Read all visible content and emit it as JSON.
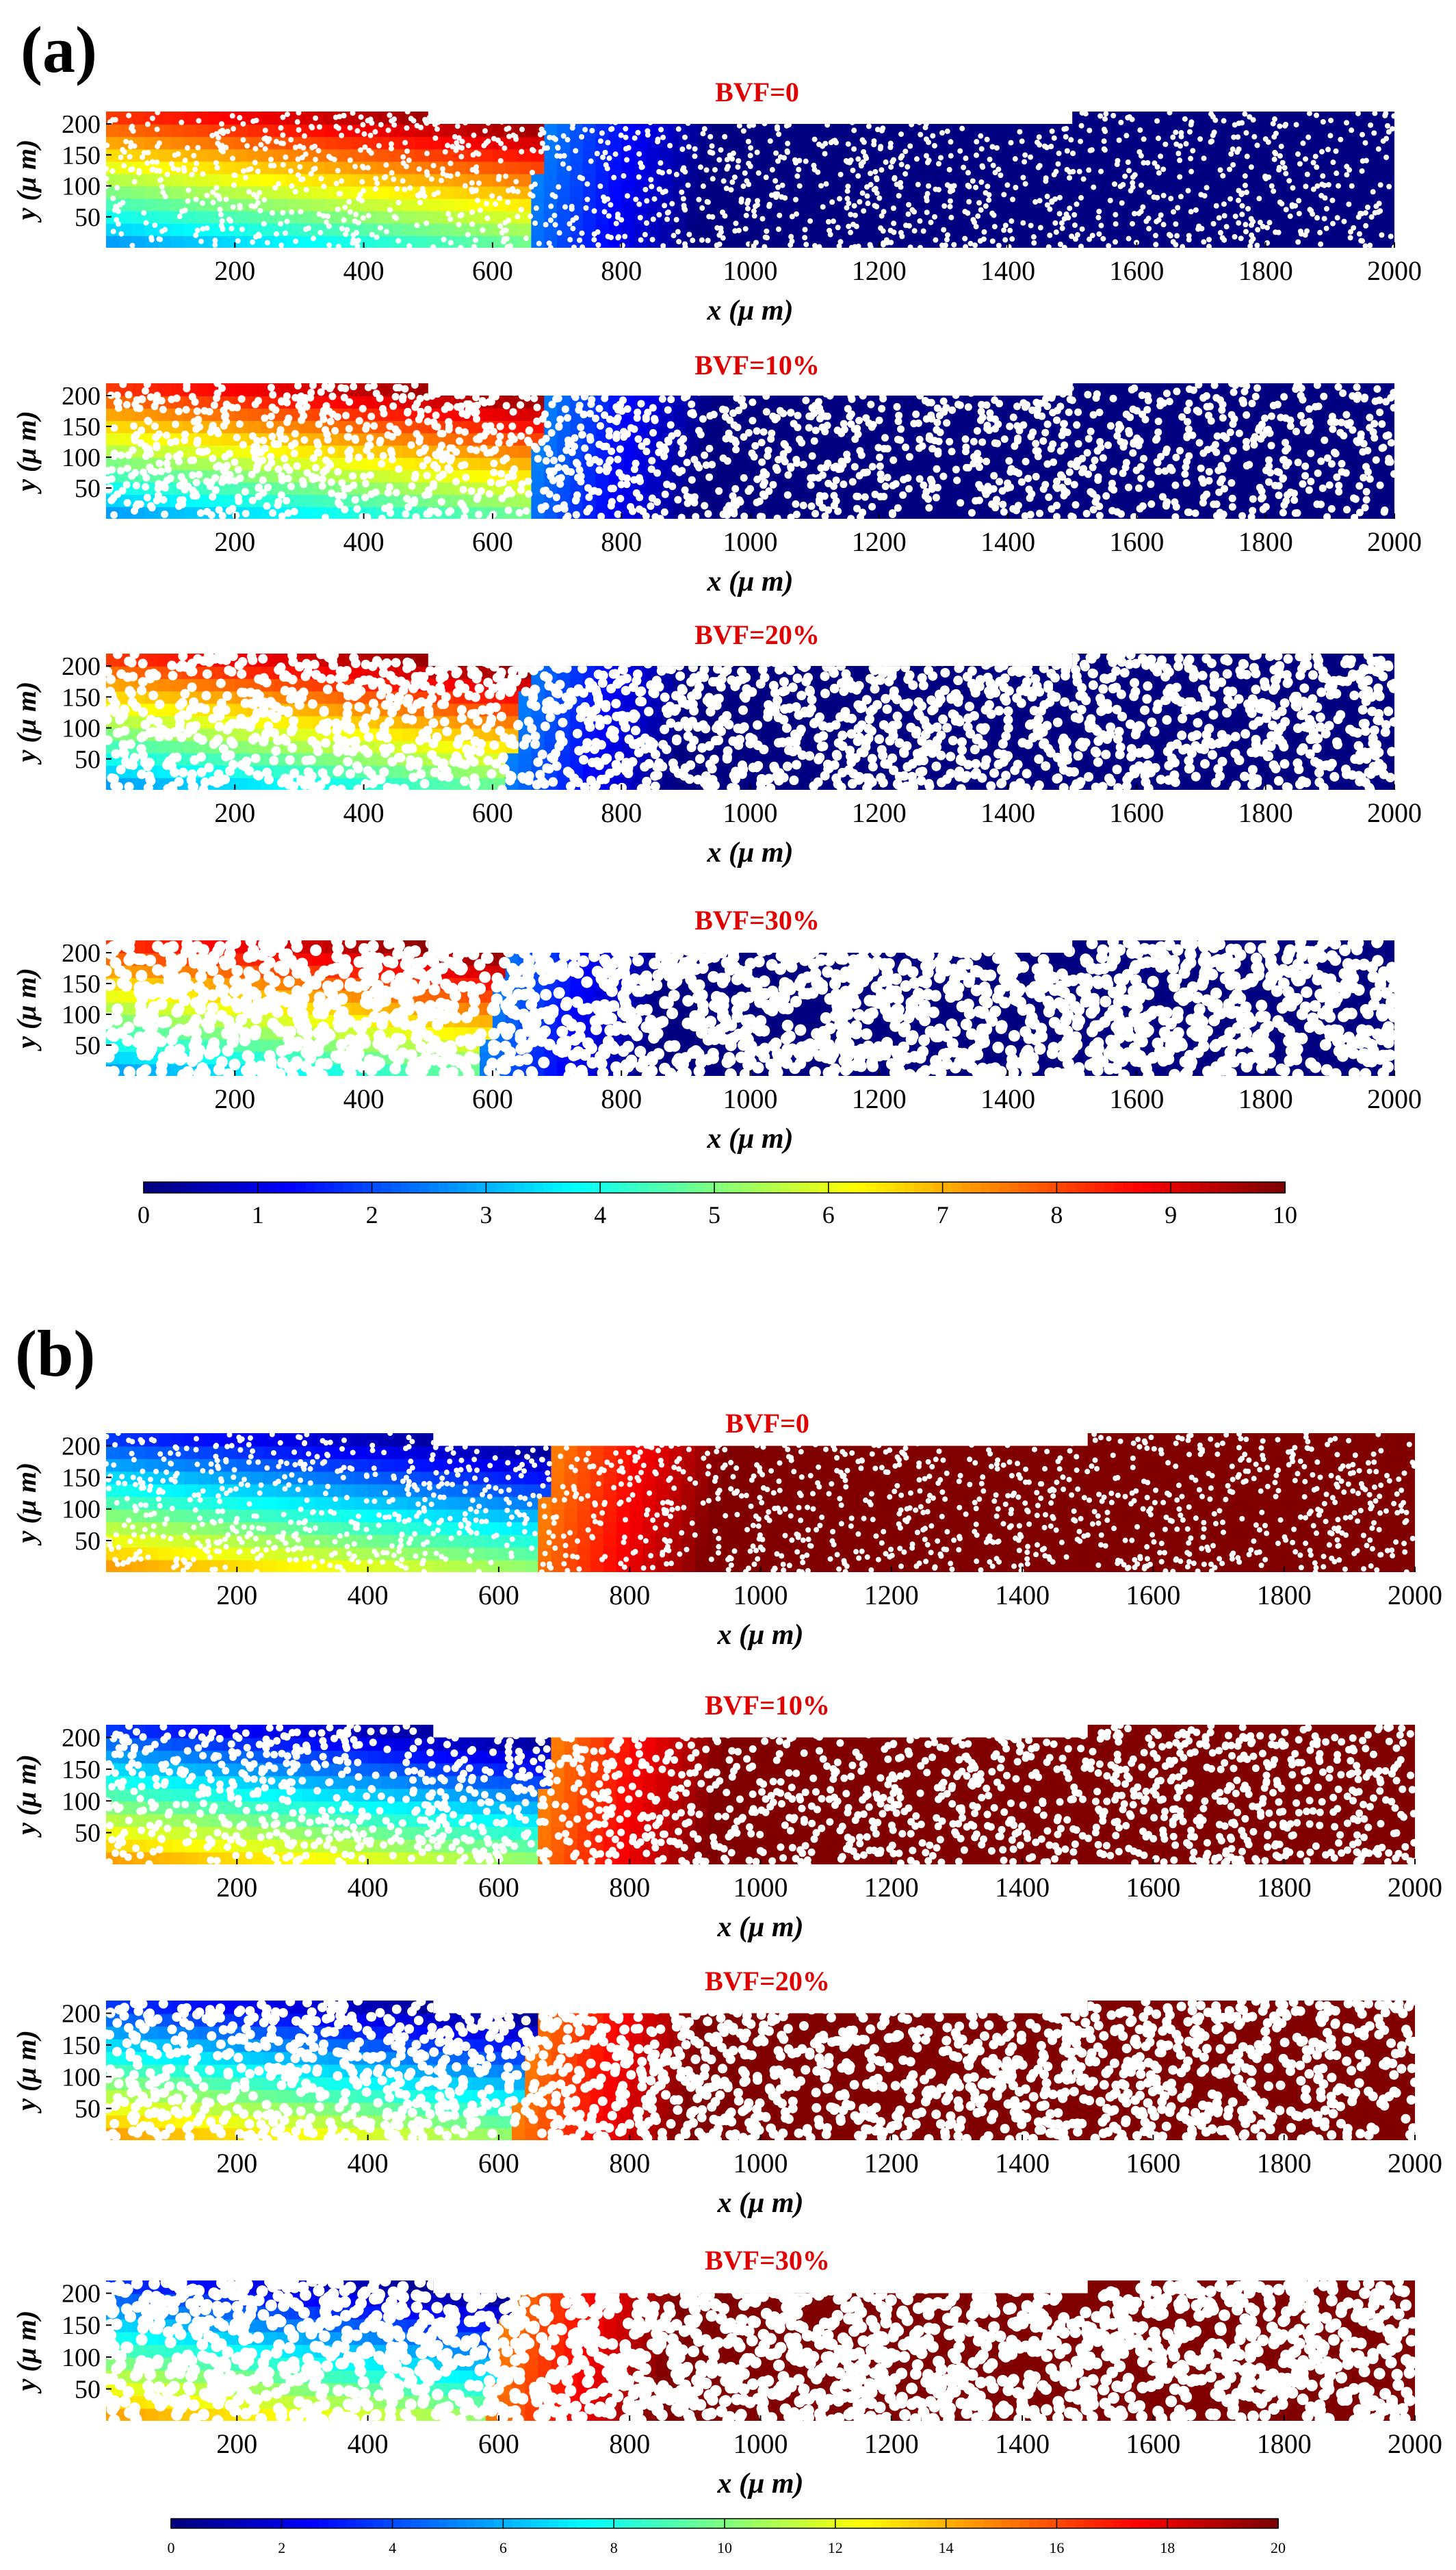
{
  "chart_data": {
    "panels": [
      {
        "label": "(a)",
        "colorbar": {
          "scheme": "jet",
          "min": 0,
          "max": 10,
          "ticks": [
            0,
            1,
            2,
            3,
            4,
            5,
            6,
            7,
            8,
            9,
            10
          ],
          "tick_labels": [
            "0",
            "1",
            "2",
            "3",
            "4",
            "5",
            "6",
            "7",
            "8",
            "9",
            "10"
          ]
        },
        "field_direction": "decreasing",
        "plots": [
          {
            "type": "heatmap",
            "title": "BVF=0",
            "bvf": 0,
            "xlabel": "x (μ m)",
            "ylabel": "y (μ m)",
            "xlim": [
              0,
              2000
            ],
            "ylim": [
              0,
              220
            ],
            "xticks": [
              200,
              400,
              600,
              800,
              1000,
              1200,
              1400,
              1600,
              1800,
              2000
            ],
            "yticks": [
              50,
              100,
              150,
              200
            ],
            "notch_x": [
              500,
              1500
            ],
            "notch_y": 200,
            "front_center_x": 650
          },
          {
            "type": "heatmap",
            "title": "BVF=10%",
            "bvf": 10,
            "xlabel": "x (μ m)",
            "ylabel": "y (μ m)",
            "xlim": [
              0,
              2000
            ],
            "ylim": [
              0,
              220
            ],
            "xticks": [
              200,
              400,
              600,
              800,
              1000,
              1200,
              1400,
              1600,
              1800,
              2000
            ],
            "yticks": [
              50,
              100,
              150,
              200
            ],
            "notch_x": [
              500,
              1500
            ],
            "notch_y": 200,
            "front_center_x": 650
          },
          {
            "type": "heatmap",
            "title": "BVF=20%",
            "bvf": 20,
            "xlabel": "x (μ m)",
            "ylabel": "y (μ m)",
            "xlim": [
              0,
              2000
            ],
            "ylim": [
              0,
              220
            ],
            "xticks": [
              200,
              400,
              600,
              800,
              1000,
              1200,
              1400,
              1600,
              1800,
              2000
            ],
            "yticks": [
              50,
              100,
              150,
              200
            ],
            "notch_x": [
              500,
              1500
            ],
            "notch_y": 200,
            "front_center_x": 620
          },
          {
            "type": "heatmap",
            "title": "BVF=30%",
            "bvf": 30,
            "xlabel": "x (μ m)",
            "ylabel": "y (μ m)",
            "xlim": [
              0,
              2000
            ],
            "ylim": [
              0,
              220
            ],
            "xticks": [
              200,
              400,
              600,
              800,
              1000,
              1200,
              1400,
              1600,
              1800,
              2000
            ],
            "yticks": [
              50,
              100,
              150,
              200
            ],
            "notch_x": [
              500,
              1500
            ],
            "notch_y": 200,
            "front_center_x": 580
          }
        ]
      },
      {
        "label": "(b)",
        "colorbar": {
          "scheme": "jet",
          "min": 0,
          "max": 20,
          "ticks": [
            0,
            2,
            4,
            6,
            8,
            10,
            12,
            14,
            16,
            18,
            20
          ],
          "tick_labels": [
            "0",
            "2",
            "4",
            "6",
            "8",
            "10",
            "12",
            "14",
            "16",
            "18",
            "20"
          ]
        },
        "field_direction": "increasing",
        "plots": [
          {
            "type": "heatmap",
            "title": "BVF=0",
            "bvf": 0,
            "xlabel": "x (μ m)",
            "ylabel": "y (μ m)",
            "xlim": [
              0,
              2000
            ],
            "ylim": [
              0,
              220
            ],
            "xticks": [
              200,
              400,
              600,
              800,
              1000,
              1200,
              1400,
              1600,
              1800,
              2000
            ],
            "yticks": [
              50,
              100,
              150,
              200
            ],
            "notch_x": [
              500,
              1500
            ],
            "notch_y": 200,
            "front_center_x": 650
          },
          {
            "type": "heatmap",
            "title": "BVF=10%",
            "bvf": 10,
            "xlabel": "x (μ m)",
            "ylabel": "y (μ m)",
            "xlim": [
              0,
              2000
            ],
            "ylim": [
              0,
              220
            ],
            "xticks": [
              200,
              400,
              600,
              800,
              1000,
              1200,
              1400,
              1600,
              1800,
              2000
            ],
            "yticks": [
              50,
              100,
              150,
              200
            ],
            "notch_x": [
              500,
              1500
            ],
            "notch_y": 200,
            "front_center_x": 650
          },
          {
            "type": "heatmap",
            "title": "BVF=20%",
            "bvf": 20,
            "xlabel": "x (μ m)",
            "ylabel": "y (μ m)",
            "xlim": [
              0,
              2000
            ],
            "ylim": [
              0,
              220
            ],
            "xticks": [
              200,
              400,
              600,
              800,
              1000,
              1200,
              1400,
              1600,
              1800,
              2000
            ],
            "yticks": [
              50,
              100,
              150,
              200
            ],
            "notch_x": [
              500,
              1500
            ],
            "notch_y": 200,
            "front_center_x": 620
          },
          {
            "type": "heatmap",
            "title": "BVF=30%",
            "bvf": 30,
            "xlabel": "x (μ m)",
            "ylabel": "y (μ m)",
            "xlim": [
              0,
              2000
            ],
            "ylim": [
              0,
              220
            ],
            "xticks": [
              200,
              400,
              600,
              800,
              1000,
              1200,
              1400,
              1600,
              1800,
              2000
            ],
            "yticks": [
              50,
              100,
              150,
              200
            ],
            "notch_x": [
              500,
              1500
            ],
            "notch_y": 200,
            "front_center_x": 580
          }
        ]
      }
    ]
  }
}
